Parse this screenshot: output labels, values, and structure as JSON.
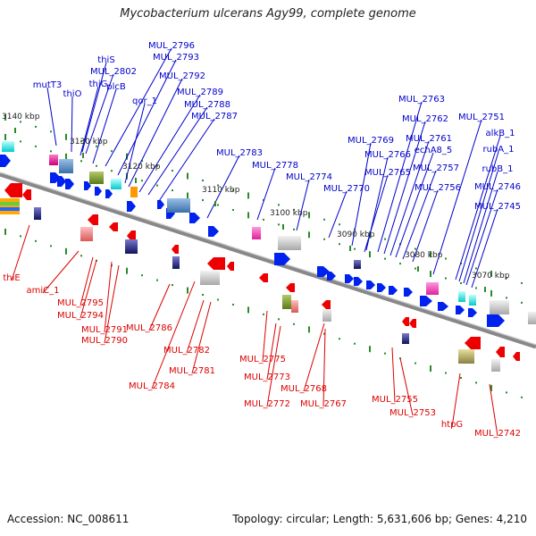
{
  "title": "Mycobacterium ulcerans Agy99, complete genome",
  "accession": "Accession: NC_008611",
  "topology": "Topology: circular; Length: 5,631,606 bp; Genes: 4,210",
  "colors": {
    "forward_label": "#0000cc",
    "reverse_label": "#dd0000",
    "backbone": "#888888",
    "tick": "#2a8a2a"
  },
  "kbp_ticks": [
    {
      "label": "3140 kbp"
    },
    {
      "label": "3130 kbp"
    },
    {
      "label": "3120 kbp"
    },
    {
      "label": "3110 kbp"
    },
    {
      "label": "3100 kbp"
    },
    {
      "label": "3090 kbp"
    },
    {
      "label": "3080 kbp"
    },
    {
      "label": "3070 kbp"
    }
  ],
  "forward_genes": [
    {
      "label": "mutT3"
    },
    {
      "label": "thiO"
    },
    {
      "label": "thiS"
    },
    {
      "label": "MUL_2802"
    },
    {
      "label": "thiG"
    },
    {
      "label": "plcB"
    },
    {
      "label": "MUL_2796"
    },
    {
      "label": "MUL_2793"
    },
    {
      "label": "qor_1"
    },
    {
      "label": "MUL_2792"
    },
    {
      "label": "MUL_2789"
    },
    {
      "label": "MUL_2788"
    },
    {
      "label": "MUL_2787"
    },
    {
      "label": "MUL_2783"
    },
    {
      "label": "MUL_2778"
    },
    {
      "label": "MUL_2774"
    },
    {
      "label": "MUL_2770"
    },
    {
      "label": "MUL_2769"
    },
    {
      "label": "MUL_2766"
    },
    {
      "label": "MUL_2765"
    },
    {
      "label": "MUL_2763"
    },
    {
      "label": "MUL_2762"
    },
    {
      "label": "MUL_2761"
    },
    {
      "label": "echA8_5"
    },
    {
      "label": "MUL_2757"
    },
    {
      "label": "MUL_2756"
    },
    {
      "label": "MUL_2751"
    },
    {
      "label": "alkB_1"
    },
    {
      "label": "rubA_1"
    },
    {
      "label": "rubB_1"
    },
    {
      "label": "MUL_2746"
    },
    {
      "label": "MUL_2745"
    }
  ],
  "reverse_genes": [
    {
      "label": "thiE"
    },
    {
      "label": "amiC_1"
    },
    {
      "label": "MUL_2795"
    },
    {
      "label": "MUL_2794"
    },
    {
      "label": "MUL_2791"
    },
    {
      "label": "MUL_2790"
    },
    {
      "label": "MUL_2786"
    },
    {
      "label": "MUL_2784"
    },
    {
      "label": "MUL_2782"
    },
    {
      "label": "MUL_2781"
    },
    {
      "label": "MUL_2775"
    },
    {
      "label": "MUL_2773"
    },
    {
      "label": "MUL_2772"
    },
    {
      "label": "MUL_2768"
    },
    {
      "label": "MUL_2767"
    },
    {
      "label": "MUL_2755"
    },
    {
      "label": "MUL_2753"
    },
    {
      "label": "htpG"
    },
    {
      "label": "MUL_2742"
    }
  ]
}
